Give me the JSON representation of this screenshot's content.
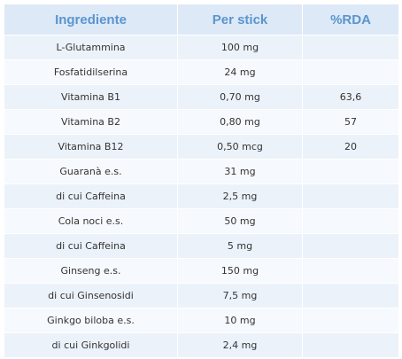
{
  "table": {
    "headers": [
      "Ingrediente",
      "Per stick",
      "%RDA"
    ],
    "rows": [
      [
        "L-Glutammina",
        "100 mg",
        ""
      ],
      [
        "Fosfatidilserina",
        "24 mg",
        ""
      ],
      [
        "Vitamina B1",
        "0,70 mg",
        "63,6"
      ],
      [
        "Vitamina B2",
        "0,80 mg",
        "57"
      ],
      [
        "Vitamina B12",
        "0,50 mcg",
        "20"
      ],
      [
        "Guaranà e.s.",
        "31 mg",
        ""
      ],
      [
        "di cui Caffeina",
        "2,5 mg",
        ""
      ],
      [
        "Cola noci e.s.",
        "50 mg",
        ""
      ],
      [
        "di cui Caffeina",
        "5 mg",
        ""
      ],
      [
        "Ginseng e.s.",
        "150 mg",
        ""
      ],
      [
        "di cui Ginsenosidi",
        "7,5 mg",
        ""
      ],
      [
        "Ginkgo biloba e.s.",
        "10 mg",
        ""
      ],
      [
        "di cui Ginkgolidi",
        "2,4 mg",
        ""
      ]
    ]
  },
  "colors": {
    "header_bg": "#dde9f6",
    "header_text": "#5a95cf",
    "row_odd_bg": "#ecf2fa",
    "row_even_bg": "#f6f9fd",
    "body_text": "#333333"
  }
}
